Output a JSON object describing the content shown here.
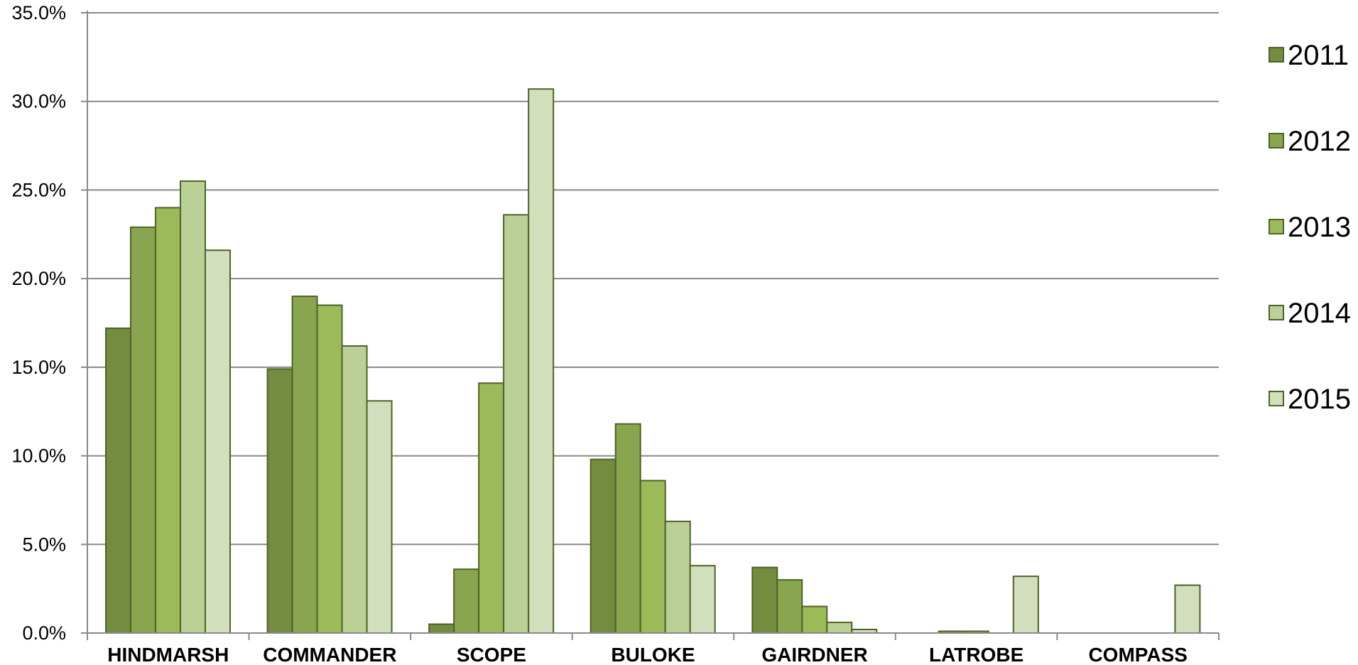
{
  "chart_data": {
    "type": "bar",
    "title": "",
    "xlabel": "",
    "ylabel": "",
    "ylim": [
      0,
      35
    ],
    "y_tick_format": "percent_one_decimal",
    "y_ticks": [
      "0.0%",
      "5.0%",
      "10.0%",
      "15.0%",
      "20.0%",
      "25.0%",
      "30.0%",
      "35.0%"
    ],
    "grid": "horizontal",
    "legend_position": "right",
    "categories": [
      "HINDMARSH",
      "COMMANDER",
      "SCOPE",
      "BULOKE",
      "GAIRDNER",
      "LATROBE",
      "COMPASS"
    ],
    "series": [
      {
        "name": "2011",
        "color": "#738c3f",
        "values": [
          17.2,
          14.9,
          0.5,
          9.8,
          3.7,
          0.0,
          0.0
        ]
      },
      {
        "name": "2012",
        "color": "#89a550",
        "values": [
          22.9,
          19.0,
          3.6,
          11.8,
          3.0,
          0.1,
          0.0
        ]
      },
      {
        "name": "2013",
        "color": "#9bbb59",
        "values": [
          24.0,
          18.5,
          14.1,
          8.6,
          1.5,
          0.1,
          0.0
        ]
      },
      {
        "name": "2014",
        "color": "#bad096",
        "values": [
          25.5,
          16.2,
          23.6,
          6.3,
          0.6,
          0.0,
          0.0
        ]
      },
      {
        "name": "2015",
        "color": "#d2dfbd",
        "values": [
          21.6,
          13.1,
          30.7,
          3.8,
          0.2,
          3.2,
          2.7
        ]
      }
    ],
    "bar_stroke": "#4f6228",
    "gridline_color": "#898989"
  }
}
